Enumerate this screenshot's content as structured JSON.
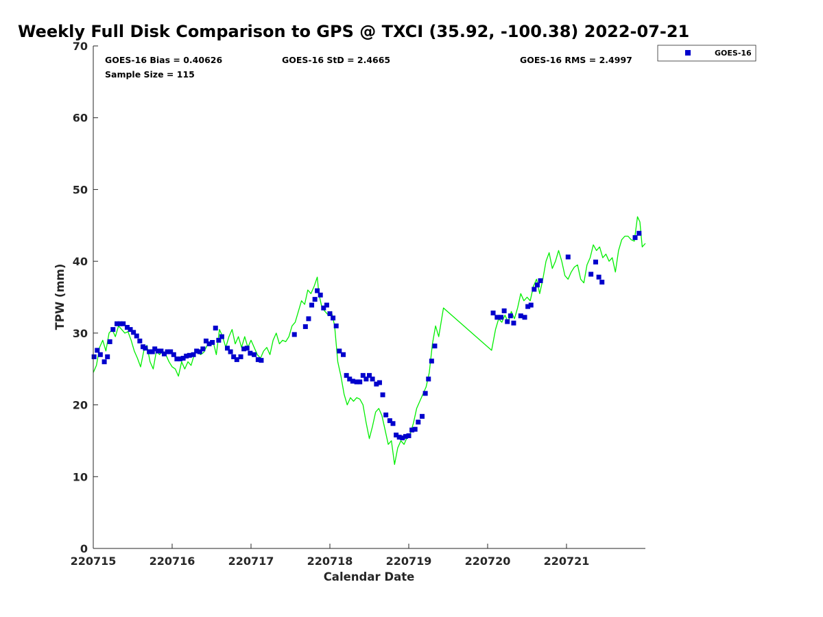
{
  "chart_data": {
    "type": "scatter",
    "title": "Weekly Full Disk Comparison to GPS @ TXCI (35.92, -100.38) 2022-07-21",
    "xlabel": "Calendar Date",
    "ylabel": "TPW (mm)",
    "xlim": [
      0,
      7
    ],
    "ylim": [
      0,
      70
    ],
    "x_ticks": [
      {
        "value": 0,
        "label": "220715"
      },
      {
        "value": 1,
        "label": "220716"
      },
      {
        "value": 2,
        "label": "220717"
      },
      {
        "value": 3,
        "label": "220718"
      },
      {
        "value": 4,
        "label": "220719"
      },
      {
        "value": 5,
        "label": "220720"
      },
      {
        "value": 6,
        "label": "220721"
      }
    ],
    "y_ticks": [
      0,
      10,
      20,
      30,
      40,
      50,
      60,
      70
    ],
    "grid": false,
    "legend": {
      "position": "top-right-outside",
      "entries": [
        "GOES-16"
      ]
    },
    "stats": {
      "bias": "GOES-16 Bias = 0.40626",
      "std": "GOES-16 StD = 2.4665",
      "rms": "GOES-16 RMS = 2.4997",
      "sample": "Sample Size = 115"
    },
    "colors": {
      "goes16": "#0000cc",
      "gps": "#00ee00"
    },
    "series": [
      {
        "name": "GOES-16",
        "kind": "scatter",
        "points": [
          [
            0.01,
            26.7
          ],
          [
            0.05,
            27.6
          ],
          [
            0.09,
            27.0
          ],
          [
            0.14,
            26.0
          ],
          [
            0.18,
            26.7
          ],
          [
            0.21,
            28.8
          ],
          [
            0.25,
            30.5
          ],
          [
            0.3,
            31.3
          ],
          [
            0.34,
            31.3
          ],
          [
            0.38,
            31.3
          ],
          [
            0.43,
            30.8
          ],
          [
            0.47,
            30.5
          ],
          [
            0.51,
            30.1
          ],
          [
            0.55,
            29.6
          ],
          [
            0.59,
            28.9
          ],
          [
            0.63,
            28.1
          ],
          [
            0.66,
            27.9
          ],
          [
            0.71,
            27.4
          ],
          [
            0.75,
            27.4
          ],
          [
            0.78,
            27.8
          ],
          [
            0.82,
            27.5
          ],
          [
            0.86,
            27.5
          ],
          [
            0.9,
            27.1
          ],
          [
            0.94,
            27.4
          ],
          [
            0.98,
            27.4
          ],
          [
            1.02,
            27.0
          ],
          [
            1.06,
            26.4
          ],
          [
            1.1,
            26.4
          ],
          [
            1.14,
            26.5
          ],
          [
            1.18,
            26.8
          ],
          [
            1.22,
            26.9
          ],
          [
            1.27,
            27.0
          ],
          [
            1.31,
            27.5
          ],
          [
            1.35,
            27.4
          ],
          [
            1.39,
            27.8
          ],
          [
            1.43,
            28.9
          ],
          [
            1.47,
            28.5
          ],
          [
            1.51,
            28.7
          ],
          [
            1.55,
            30.7
          ],
          [
            1.59,
            29.0
          ],
          [
            1.63,
            29.5
          ],
          [
            1.7,
            27.9
          ],
          [
            1.74,
            27.4
          ],
          [
            1.78,
            26.7
          ],
          [
            1.82,
            26.3
          ],
          [
            1.87,
            26.7
          ],
          [
            1.91,
            27.8
          ],
          [
            1.95,
            27.9
          ],
          [
            1.99,
            27.2
          ],
          [
            2.04,
            27.0
          ],
          [
            2.09,
            26.3
          ],
          [
            2.13,
            26.2
          ],
          [
            2.55,
            29.8
          ],
          [
            2.69,
            30.9
          ],
          [
            2.73,
            32.0
          ],
          [
            2.77,
            33.9
          ],
          [
            2.81,
            34.7
          ],
          [
            2.84,
            35.9
          ],
          [
            2.88,
            35.3
          ],
          [
            2.92,
            33.5
          ],
          [
            2.96,
            33.9
          ],
          [
            3.0,
            32.7
          ],
          [
            3.04,
            32.1
          ],
          [
            3.08,
            31.0
          ],
          [
            3.12,
            27.5
          ],
          [
            3.17,
            27.0
          ],
          [
            3.21,
            24.1
          ],
          [
            3.25,
            23.6
          ],
          [
            3.29,
            23.3
          ],
          [
            3.34,
            23.2
          ],
          [
            3.38,
            23.2
          ],
          [
            3.42,
            24.1
          ],
          [
            3.46,
            23.6
          ],
          [
            3.5,
            24.1
          ],
          [
            3.54,
            23.6
          ],
          [
            3.59,
            22.9
          ],
          [
            3.63,
            23.1
          ],
          [
            3.67,
            21.4
          ],
          [
            3.71,
            18.6
          ],
          [
            3.76,
            17.8
          ],
          [
            3.8,
            17.4
          ],
          [
            3.84,
            15.8
          ],
          [
            3.88,
            15.5
          ],
          [
            3.92,
            15.4
          ],
          [
            3.96,
            15.6
          ],
          [
            4.0,
            15.7
          ],
          [
            4.04,
            16.5
          ],
          [
            4.08,
            16.6
          ],
          [
            4.12,
            17.6
          ],
          [
            4.17,
            18.4
          ],
          [
            4.21,
            21.6
          ],
          [
            4.25,
            23.6
          ],
          [
            4.29,
            26.1
          ],
          [
            4.33,
            28.2
          ],
          [
            5.07,
            32.8
          ],
          [
            5.12,
            32.2
          ],
          [
            5.17,
            32.2
          ],
          [
            5.21,
            33.1
          ],
          [
            5.25,
            31.6
          ],
          [
            5.29,
            32.4
          ],
          [
            5.33,
            31.4
          ],
          [
            5.42,
            32.4
          ],
          [
            5.47,
            32.2
          ],
          [
            5.51,
            33.7
          ],
          [
            5.55,
            33.9
          ],
          [
            5.59,
            36.1
          ],
          [
            5.63,
            36.7
          ],
          [
            5.67,
            37.3
          ],
          [
            6.02,
            40.6
          ],
          [
            6.31,
            38.2
          ],
          [
            6.37,
            39.9
          ],
          [
            6.41,
            37.8
          ],
          [
            6.45,
            37.1
          ],
          [
            6.87,
            43.3
          ],
          [
            6.92,
            43.9
          ]
        ]
      },
      {
        "name": "GPS",
        "kind": "line",
        "points": [
          [
            0.0,
            24.5
          ],
          [
            0.04,
            25.5
          ],
          [
            0.08,
            28.0
          ],
          [
            0.12,
            29.0
          ],
          [
            0.16,
            27.5
          ],
          [
            0.2,
            30.0
          ],
          [
            0.24,
            30.5
          ],
          [
            0.28,
            29.5
          ],
          [
            0.32,
            31.0
          ],
          [
            0.36,
            30.5
          ],
          [
            0.4,
            30.0
          ],
          [
            0.44,
            30.2
          ],
          [
            0.48,
            29.0
          ],
          [
            0.52,
            27.5
          ],
          [
            0.56,
            26.5
          ],
          [
            0.6,
            25.3
          ],
          [
            0.64,
            27.5
          ],
          [
            0.68,
            28.3
          ],
          [
            0.72,
            26.0
          ],
          [
            0.76,
            25.0
          ],
          [
            0.8,
            27.5
          ],
          [
            0.84,
            27.0
          ],
          [
            0.88,
            27.5
          ],
          [
            0.92,
            27.0
          ],
          [
            0.96,
            26.0
          ],
          [
            1.0,
            25.3
          ],
          [
            1.04,
            25.0
          ],
          [
            1.08,
            24.0
          ],
          [
            1.12,
            26.0
          ],
          [
            1.16,
            25.0
          ],
          [
            1.2,
            26.0
          ],
          [
            1.24,
            25.5
          ],
          [
            1.28,
            27.0
          ],
          [
            1.32,
            27.5
          ],
          [
            1.36,
            27.0
          ],
          [
            1.4,
            27.3
          ],
          [
            1.44,
            28.2
          ],
          [
            1.48,
            28.5
          ],
          [
            1.52,
            28.8
          ],
          [
            1.56,
            27.0
          ],
          [
            1.6,
            30.5
          ],
          [
            1.64,
            29.5
          ],
          [
            1.68,
            28.0
          ],
          [
            1.72,
            29.5
          ],
          [
            1.76,
            30.5
          ],
          [
            1.8,
            28.5
          ],
          [
            1.84,
            29.5
          ],
          [
            1.88,
            28.0
          ],
          [
            1.92,
            29.5
          ],
          [
            1.96,
            28.0
          ],
          [
            2.0,
            29.0
          ],
          [
            2.04,
            28.0
          ],
          [
            2.08,
            27.0
          ],
          [
            2.12,
            26.5
          ],
          [
            2.16,
            27.5
          ],
          [
            2.2,
            28.0
          ],
          [
            2.24,
            27.0
          ],
          [
            2.28,
            29.0
          ],
          [
            2.32,
            30.0
          ],
          [
            2.36,
            28.5
          ],
          [
            2.4,
            29.0
          ],
          [
            2.44,
            28.8
          ],
          [
            2.48,
            29.5
          ],
          [
            2.52,
            31.0
          ],
          [
            2.56,
            31.5
          ],
          [
            2.6,
            33.0
          ],
          [
            2.64,
            34.5
          ],
          [
            2.68,
            34.0
          ],
          [
            2.72,
            36.0
          ],
          [
            2.76,
            35.5
          ],
          [
            2.8,
            36.5
          ],
          [
            2.84,
            37.8
          ],
          [
            2.86,
            35.5
          ],
          [
            2.9,
            33.5
          ],
          [
            2.94,
            33.0
          ],
          [
            2.98,
            32.5
          ],
          [
            3.02,
            33.0
          ],
          [
            3.06,
            31.0
          ],
          [
            3.1,
            26.0
          ],
          [
            3.14,
            24.0
          ],
          [
            3.18,
            21.5
          ],
          [
            3.22,
            20.0
          ],
          [
            3.26,
            21.0
          ],
          [
            3.3,
            20.5
          ],
          [
            3.34,
            21.0
          ],
          [
            3.38,
            20.8
          ],
          [
            3.42,
            20.0
          ],
          [
            3.46,
            17.5
          ],
          [
            3.5,
            15.3
          ],
          [
            3.54,
            17.0
          ],
          [
            3.58,
            19.0
          ],
          [
            3.62,
            19.5
          ],
          [
            3.66,
            18.5
          ],
          [
            3.7,
            16.5
          ],
          [
            3.74,
            14.5
          ],
          [
            3.78,
            15.0
          ],
          [
            3.82,
            11.7
          ],
          [
            3.86,
            14.0
          ],
          [
            3.9,
            15.0
          ],
          [
            3.94,
            14.5
          ],
          [
            3.98,
            15.5
          ],
          [
            4.02,
            16.0
          ],
          [
            4.06,
            17.5
          ],
          [
            4.1,
            19.5
          ],
          [
            4.14,
            20.5
          ],
          [
            4.18,
            21.5
          ],
          [
            4.22,
            22.5
          ],
          [
            4.26,
            24.5
          ],
          [
            4.3,
            28.5
          ],
          [
            4.34,
            31.0
          ],
          [
            4.38,
            29.5
          ],
          [
            4.44,
            33.5
          ],
          [
            5.05,
            27.6
          ],
          [
            5.1,
            30.5
          ],
          [
            5.14,
            32.0
          ],
          [
            5.18,
            31.5
          ],
          [
            5.22,
            32.5
          ],
          [
            5.26,
            31.5
          ],
          [
            5.3,
            33.0
          ],
          [
            5.34,
            32.0
          ],
          [
            5.38,
            33.5
          ],
          [
            5.42,
            35.5
          ],
          [
            5.46,
            34.5
          ],
          [
            5.5,
            35.0
          ],
          [
            5.54,
            34.5
          ],
          [
            5.58,
            36.5
          ],
          [
            5.62,
            37.5
          ],
          [
            5.66,
            35.5
          ],
          [
            5.7,
            37.5
          ],
          [
            5.74,
            40.0
          ],
          [
            5.78,
            41.2
          ],
          [
            5.82,
            39.0
          ],
          [
            5.86,
            40.0
          ],
          [
            5.9,
            41.5
          ],
          [
            5.94,
            40.0
          ],
          [
            5.98,
            38.0
          ],
          [
            6.02,
            37.5
          ],
          [
            6.06,
            38.5
          ],
          [
            6.1,
            39.2
          ],
          [
            6.14,
            39.5
          ],
          [
            6.18,
            37.5
          ],
          [
            6.22,
            37.0
          ],
          [
            6.26,
            39.5
          ],
          [
            6.3,
            40.5
          ],
          [
            6.34,
            42.3
          ],
          [
            6.38,
            41.5
          ],
          [
            6.42,
            42.0
          ],
          [
            6.46,
            40.5
          ],
          [
            6.5,
            41.0
          ],
          [
            6.54,
            40.0
          ],
          [
            6.58,
            40.5
          ],
          [
            6.62,
            38.5
          ],
          [
            6.66,
            41.5
          ],
          [
            6.7,
            43.0
          ],
          [
            6.74,
            43.5
          ],
          [
            6.78,
            43.5
          ],
          [
            6.82,
            43.0
          ],
          [
            6.86,
            42.8
          ],
          [
            6.9,
            46.2
          ],
          [
            6.93,
            45.5
          ],
          [
            6.96,
            42.0
          ],
          [
            7.0,
            42.5
          ]
        ]
      }
    ]
  }
}
